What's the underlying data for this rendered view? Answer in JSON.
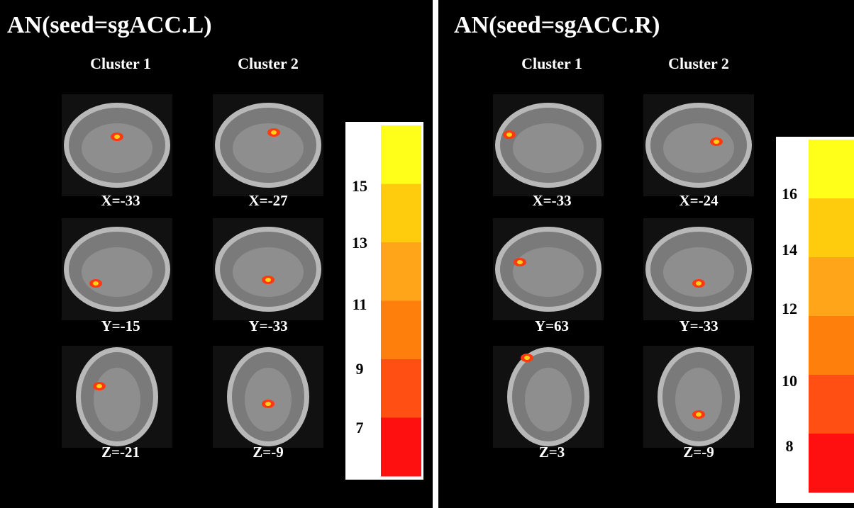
{
  "panels": [
    {
      "title": "AN(seed=sgACC.L)",
      "cluster_headers": [
        "Cluster 1",
        "Cluster 2"
      ],
      "images": [
        {
          "label": "X=-33"
        },
        {
          "label": "X=-27"
        },
        {
          "label": "Y=-15"
        },
        {
          "label": "Y=-33"
        },
        {
          "label": "Z=-21"
        },
        {
          "label": "Z=-9"
        }
      ],
      "colorbar": {
        "colors": [
          "#ffff1a",
          "#ffcc0d",
          "#ffa51a",
          "#ff7f0d",
          "#ff4f12",
          "#ff1010"
        ],
        "ticks": [
          "15",
          "13",
          "11",
          "9",
          "7"
        ]
      }
    },
    {
      "title": "AN(seed=sgACC.R)",
      "cluster_headers": [
        "Cluster 1",
        "Cluster 2"
      ],
      "images": [
        {
          "label": "X=-33"
        },
        {
          "label": "X=-24"
        },
        {
          "label": "Y=63"
        },
        {
          "label": "Y=-33"
        },
        {
          "label": "Z=3"
        },
        {
          "label": "Z=-9"
        }
      ],
      "colorbar": {
        "colors": [
          "#ffff1a",
          "#ffcc0d",
          "#ffa51a",
          "#ff7f0d",
          "#ff4f12",
          "#ff1010"
        ],
        "ticks": [
          "16",
          "14",
          "12",
          "10",
          "8"
        ]
      }
    }
  ]
}
